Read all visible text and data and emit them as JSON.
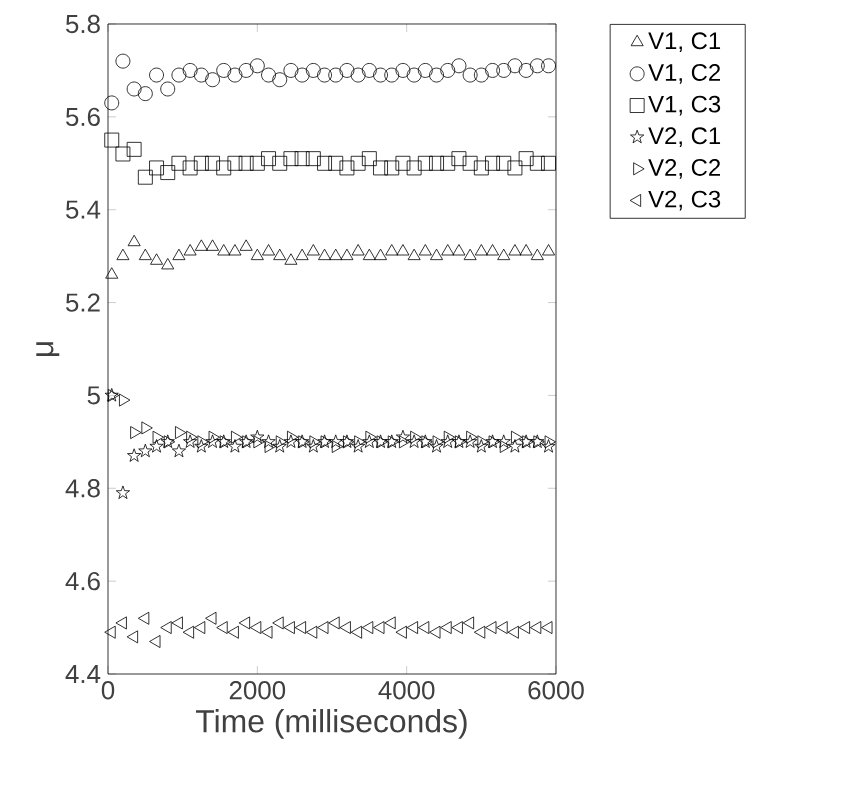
{
  "chart_data": {
    "type": "scatter",
    "xlabel": "Time (milliseconds)",
    "ylabel": "μ",
    "x": [
      50,
      200,
      350,
      500,
      650,
      800,
      950,
      1100,
      1250,
      1400,
      1550,
      1700,
      1850,
      2000,
      2150,
      2300,
      2450,
      2600,
      2750,
      2900,
      3050,
      3200,
      3350,
      3500,
      3650,
      3800,
      3950,
      4100,
      4250,
      4400,
      4550,
      4700,
      4850,
      5000,
      5150,
      5300,
      5450,
      5600,
      5750,
      5900
    ],
    "series": [
      {
        "name": "V1, C1",
        "color": "#000000",
        "marker": "triangle",
        "values": [
          5.26,
          5.3,
          5.33,
          5.3,
          5.29,
          5.28,
          5.3,
          5.31,
          5.32,
          5.32,
          5.31,
          5.31,
          5.32,
          5.3,
          5.31,
          5.3,
          5.29,
          5.3,
          5.31,
          5.3,
          5.3,
          5.3,
          5.31,
          5.3,
          5.3,
          5.31,
          5.31,
          5.3,
          5.31,
          5.3,
          5.31,
          5.31,
          5.3,
          5.31,
          5.31,
          5.3,
          5.31,
          5.31,
          5.3,
          5.31
        ]
      },
      {
        "name": "V1, C2",
        "color": "#000000",
        "marker": "circle",
        "values": [
          5.63,
          5.72,
          5.66,
          5.65,
          5.69,
          5.66,
          5.69,
          5.7,
          5.69,
          5.68,
          5.7,
          5.69,
          5.7,
          5.71,
          5.69,
          5.68,
          5.7,
          5.69,
          5.7,
          5.69,
          5.69,
          5.7,
          5.69,
          5.7,
          5.69,
          5.69,
          5.7,
          5.69,
          5.7,
          5.69,
          5.7,
          5.71,
          5.69,
          5.69,
          5.7,
          5.7,
          5.71,
          5.7,
          5.71,
          5.71
        ]
      },
      {
        "name": "V1, C3",
        "color": "#000000",
        "marker": "square",
        "values": [
          5.55,
          5.52,
          5.53,
          5.47,
          5.49,
          5.48,
          5.5,
          5.49,
          5.5,
          5.5,
          5.49,
          5.5,
          5.5,
          5.5,
          5.51,
          5.5,
          5.51,
          5.51,
          5.51,
          5.5,
          5.5,
          5.49,
          5.5,
          5.51,
          5.49,
          5.49,
          5.5,
          5.49,
          5.5,
          5.5,
          5.5,
          5.51,
          5.5,
          5.49,
          5.5,
          5.5,
          5.49,
          5.51,
          5.5,
          5.5
        ]
      },
      {
        "name": "V2, C1",
        "color": "#000000",
        "marker": "star",
        "values": [
          5.0,
          4.79,
          4.87,
          4.88,
          4.89,
          4.9,
          4.88,
          4.9,
          4.89,
          4.9,
          4.9,
          4.89,
          4.9,
          4.91,
          4.9,
          4.89,
          4.9,
          4.9,
          4.89,
          4.9,
          4.9,
          4.9,
          4.89,
          4.9,
          4.9,
          4.9,
          4.91,
          4.9,
          4.9,
          4.89,
          4.9,
          4.9,
          4.9,
          4.89,
          4.9,
          4.9,
          4.89,
          4.9,
          4.9,
          4.89
        ]
      },
      {
        "name": "V2, C2",
        "color": "#000000",
        "marker": "triangle",
        "values": [
          5.0,
          4.99,
          4.92,
          4.93,
          4.91,
          4.9,
          4.92,
          4.91,
          4.9,
          4.91,
          4.9,
          4.91,
          4.9,
          4.9,
          4.89,
          4.9,
          4.91,
          4.9,
          4.9,
          4.9,
          4.89,
          4.9,
          4.9,
          4.91,
          4.9,
          4.9,
          4.9,
          4.91,
          4.9,
          4.9,
          4.91,
          4.9,
          4.91,
          4.9,
          4.9,
          4.89,
          4.91,
          4.9,
          4.9,
          4.9
        ]
      },
      {
        "name": "V2, C3",
        "color": "#000000",
        "marker": "triangle",
        "values": [
          4.49,
          4.51,
          4.48,
          4.52,
          4.47,
          4.5,
          4.51,
          4.49,
          4.5,
          4.52,
          4.5,
          4.49,
          4.51,
          4.5,
          4.49,
          4.51,
          4.5,
          4.5,
          4.49,
          4.5,
          4.51,
          4.5,
          4.49,
          4.5,
          4.5,
          4.51,
          4.49,
          4.5,
          4.5,
          4.49,
          4.5,
          4.5,
          4.51,
          4.49,
          4.5,
          4.5,
          4.49,
          4.5,
          4.5,
          4.5
        ]
      }
    ],
    "xlim": [
      0,
      6000
    ],
    "xticks": [
      0,
      2000,
      4000,
      6000
    ],
    "ylim": [
      4.4,
      5.8
    ],
    "yticks": [
      {
        "value": 4.4,
        "label": "4.4"
      },
      {
        "value": 4.6,
        "label": "4.6"
      },
      {
        "value": 4.8,
        "label": "4.8"
      },
      {
        "value": 5,
        "label": "5"
      },
      {
        "value": 5.2,
        "label": "5.2"
      },
      {
        "value": 5.4,
        "label": "5.4"
      },
      {
        "value": 5.6,
        "label": "5.6"
      },
      {
        "value": 5.8,
        "label": "5.8"
      }
    ],
    "grid": false,
    "legend": "top right"
  }
}
